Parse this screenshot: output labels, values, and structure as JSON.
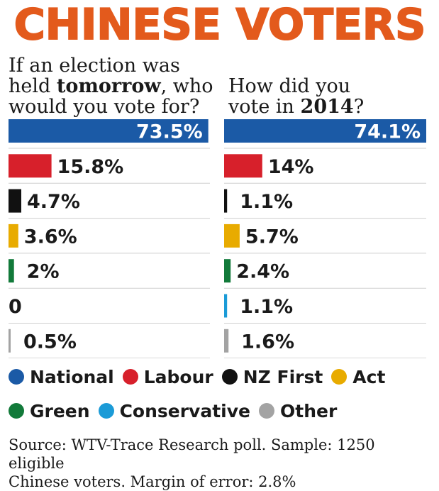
{
  "title": "CHINESE VOTERS",
  "questions": {
    "left": [
      "If an election was",
      "held ",
      "tomorrow",
      ", who",
      "would you vote for?"
    ],
    "right": [
      "How did you",
      "vote in ",
      "2014",
      "?"
    ]
  },
  "chart_data": {
    "type": "bar",
    "categories": [
      "National",
      "Labour",
      "NZ First",
      "Act",
      "Green",
      "Conservative",
      "Other"
    ],
    "series": [
      {
        "values": [
          73.5,
          15.8,
          4.7,
          3.6,
          2,
          0,
          0.5
        ],
        "labels": [
          "73.5%",
          "15.8%",
          "4.7%",
          "3.6%",
          "2%",
          "0",
          "0.5%"
        ]
      },
      {
        "values": [
          74.1,
          14,
          1.1,
          5.7,
          2.4,
          1.1,
          1.6
        ],
        "labels": [
          "74.1%",
          "14%",
          "1.1%",
          "5.7%",
          "2.4%",
          "1.1%",
          "1.6%"
        ]
      }
    ],
    "colors": [
      "#1b5aa6",
      "#d7202b",
      "#111111",
      "#e8ab00",
      "#127a3a",
      "#1b9bd7",
      "#a3a3a3"
    ],
    "xlim": [
      0,
      74.1
    ],
    "legend_position": "bottom"
  },
  "legend": [
    {
      "label": "National",
      "color": "#1b5aa6"
    },
    {
      "label": "Labour",
      "color": "#d7202b"
    },
    {
      "label": "NZ First",
      "color": "#111111"
    },
    {
      "label": "Act",
      "color": "#e8ab00"
    },
    {
      "label": "Green",
      "color": "#127a3a"
    },
    {
      "label": "Conservative",
      "color": "#1b9bd7"
    },
    {
      "label": "Other",
      "color": "#a3a3a3"
    }
  ],
  "source": [
    "Source: WTV-Trace Research poll. Sample: 1250 eligible",
    "Chinese voters. Margin of error: 2.8%"
  ]
}
